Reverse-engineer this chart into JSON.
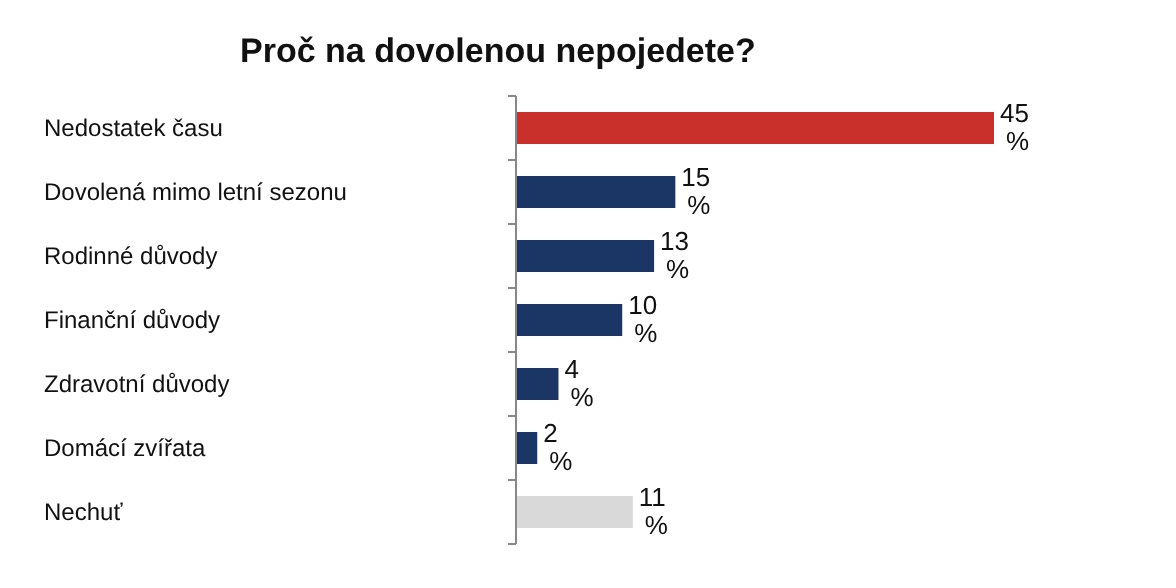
{
  "chart_data": {
    "type": "bar",
    "orientation": "horizontal",
    "title": "Proč na dovolenou nepojedete?",
    "categories": [
      "Nedostatek času",
      "Dovolená mimo letní sezonu",
      "Rodinné důvody",
      "Finanční důvody",
      "Zdravotní důvody",
      "Domácí zvířata",
      "Nechuť"
    ],
    "values": [
      45,
      15,
      13,
      10,
      4,
      2,
      11
    ],
    "colors": [
      "#c9302c",
      "#1b3664",
      "#1b3664",
      "#1b3664",
      "#1b3664",
      "#1b3664",
      "#d9d9d9"
    ],
    "value_labels": [
      "45 %",
      "15 %",
      "13 %",
      "10 %",
      "4 %",
      "2 %",
      "11 %"
    ]
  }
}
